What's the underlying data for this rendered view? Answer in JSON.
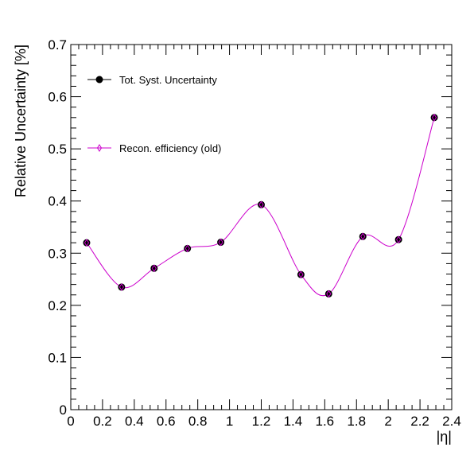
{
  "chart_data": {
    "type": "line",
    "title": "",
    "xlabel": "|η|",
    "ylabel": "Relative Uncertainty [%]",
    "xlim": [
      0,
      2.4
    ],
    "ylim": [
      0,
      0.7
    ],
    "x_ticks": [
      "0",
      "0.2",
      "0.4",
      "0.6",
      "0.8",
      "1",
      "1.2",
      "1.4",
      "1.6",
      "1.8",
      "2",
      "2.2",
      "2.4"
    ],
    "y_ticks": [
      "0",
      "0.1",
      "0.2",
      "0.3",
      "0.4",
      "0.5",
      "0.6",
      "0.7"
    ],
    "legend_position": "top-left",
    "grid": false,
    "series": [
      {
        "name": "Tot. Syst. Uncertainty",
        "color": "#000000",
        "marker": "filled-circle",
        "x": [
          0.1,
          0.32,
          0.525,
          0.735,
          0.945,
          1.2,
          1.45,
          1.625,
          1.84,
          2.065,
          2.29
        ],
        "values": [
          0.32,
          0.235,
          0.271,
          0.309,
          0.321,
          0.393,
          0.259,
          0.222,
          0.332,
          0.326,
          0.56
        ]
      },
      {
        "name": "Recon. efficiency (old)",
        "color": "#cc00cc",
        "marker": "diamond",
        "x": [
          0.1,
          0.32,
          0.525,
          0.735,
          0.945,
          1.2,
          1.45,
          1.625,
          1.84,
          2.065,
          2.29
        ],
        "values": [
          0.32,
          0.235,
          0.271,
          0.309,
          0.321,
          0.393,
          0.259,
          0.222,
          0.332,
          0.326,
          0.56
        ]
      }
    ]
  }
}
